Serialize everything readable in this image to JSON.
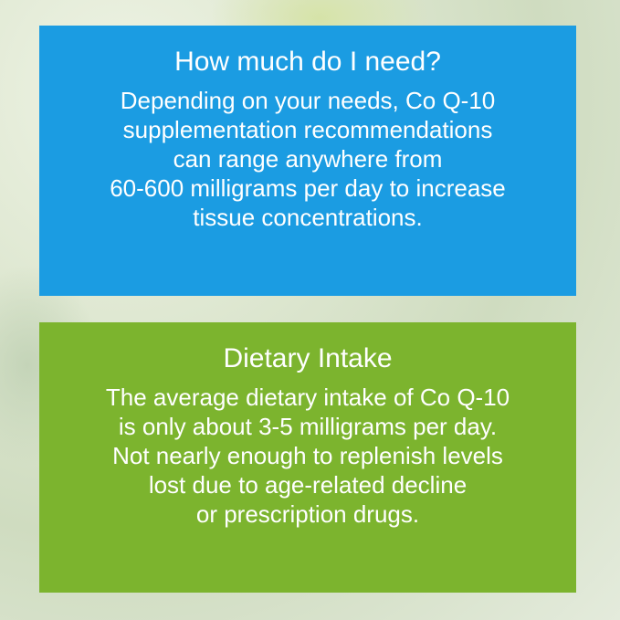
{
  "colors": {
    "blue_panel": "#1b9ce2",
    "green_panel": "#7cb42e",
    "text": "#ffffff"
  },
  "panels": [
    {
      "title": "How much do I need?",
      "lines": [
        "Depending on your needs, Co Q-10",
        "supplementation recommendations",
        "can range anywhere from",
        "60-600 milligrams per day to increase",
        "tissue concentrations."
      ]
    },
    {
      "title": "Dietary Intake",
      "lines": [
        "The average dietary intake of Co Q-10",
        "is only about 3-5 milligrams per day.",
        "Not nearly enough to replenish levels",
        "lost due to age-related decline",
        "or prescription drugs."
      ]
    }
  ]
}
